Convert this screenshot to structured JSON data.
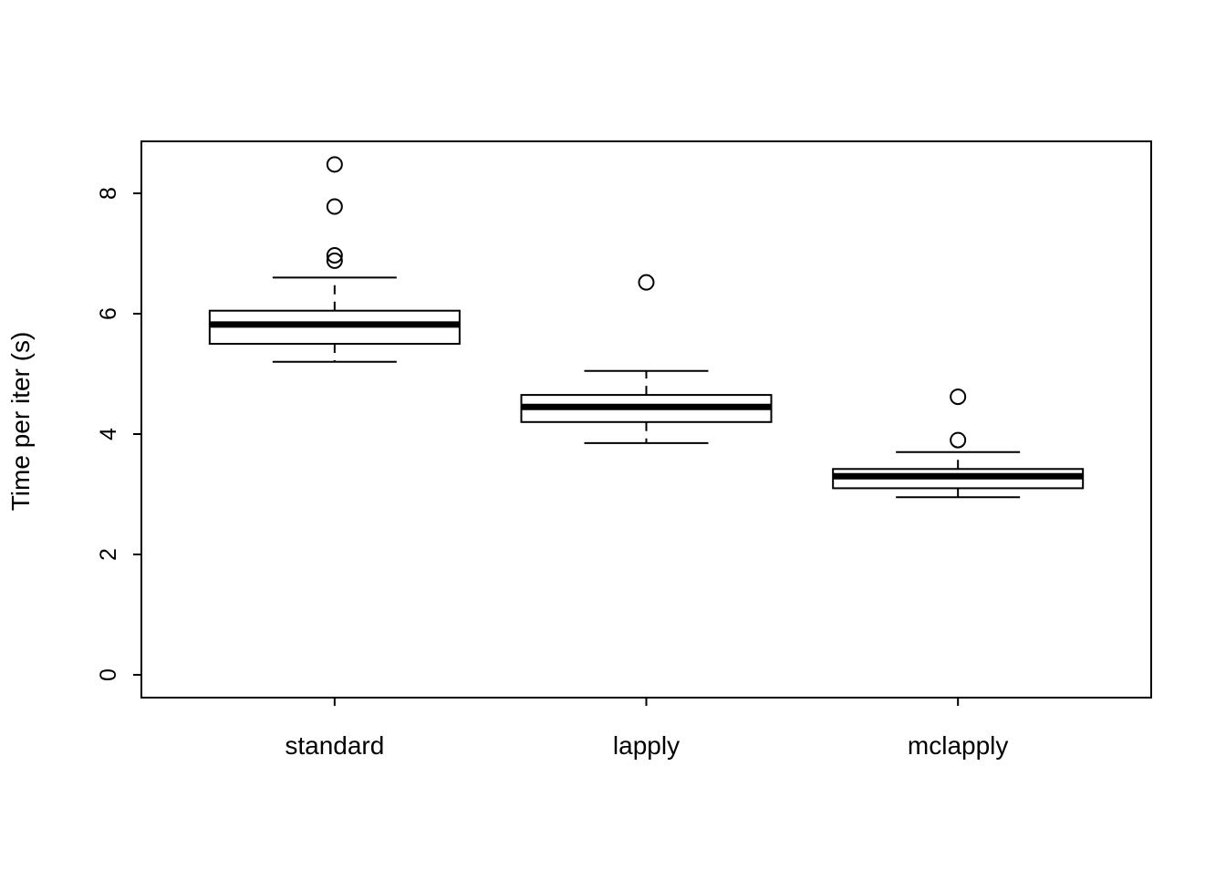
{
  "chart_data": {
    "type": "boxplot",
    "title": "",
    "xlabel": "",
    "ylabel": "Time per iter (s)",
    "categories": [
      "standard",
      "lapply",
      "mclapply"
    ],
    "yticks": [
      0,
      2,
      4,
      6,
      8
    ],
    "ylim": [
      -0.4,
      8.9
    ],
    "grid": false,
    "legend": "none",
    "colors": {
      "stroke": "#000000",
      "box_fill": "#ffffff",
      "background": "#ffffff"
    },
    "series": [
      {
        "name": "standard",
        "min": 5.2,
        "q1": 5.5,
        "median": 5.82,
        "q3": 6.05,
        "max": 6.6,
        "outliers": [
          6.88,
          6.97,
          7.78,
          8.48
        ]
      },
      {
        "name": "lapply",
        "min": 3.85,
        "q1": 4.2,
        "median": 4.45,
        "q3": 4.65,
        "max": 5.05,
        "outliers": [
          6.52
        ]
      },
      {
        "name": "mclapply",
        "min": 2.95,
        "q1": 3.1,
        "median": 3.3,
        "q3": 3.42,
        "max": 3.7,
        "outliers": [
          3.9,
          4.62
        ]
      }
    ]
  }
}
